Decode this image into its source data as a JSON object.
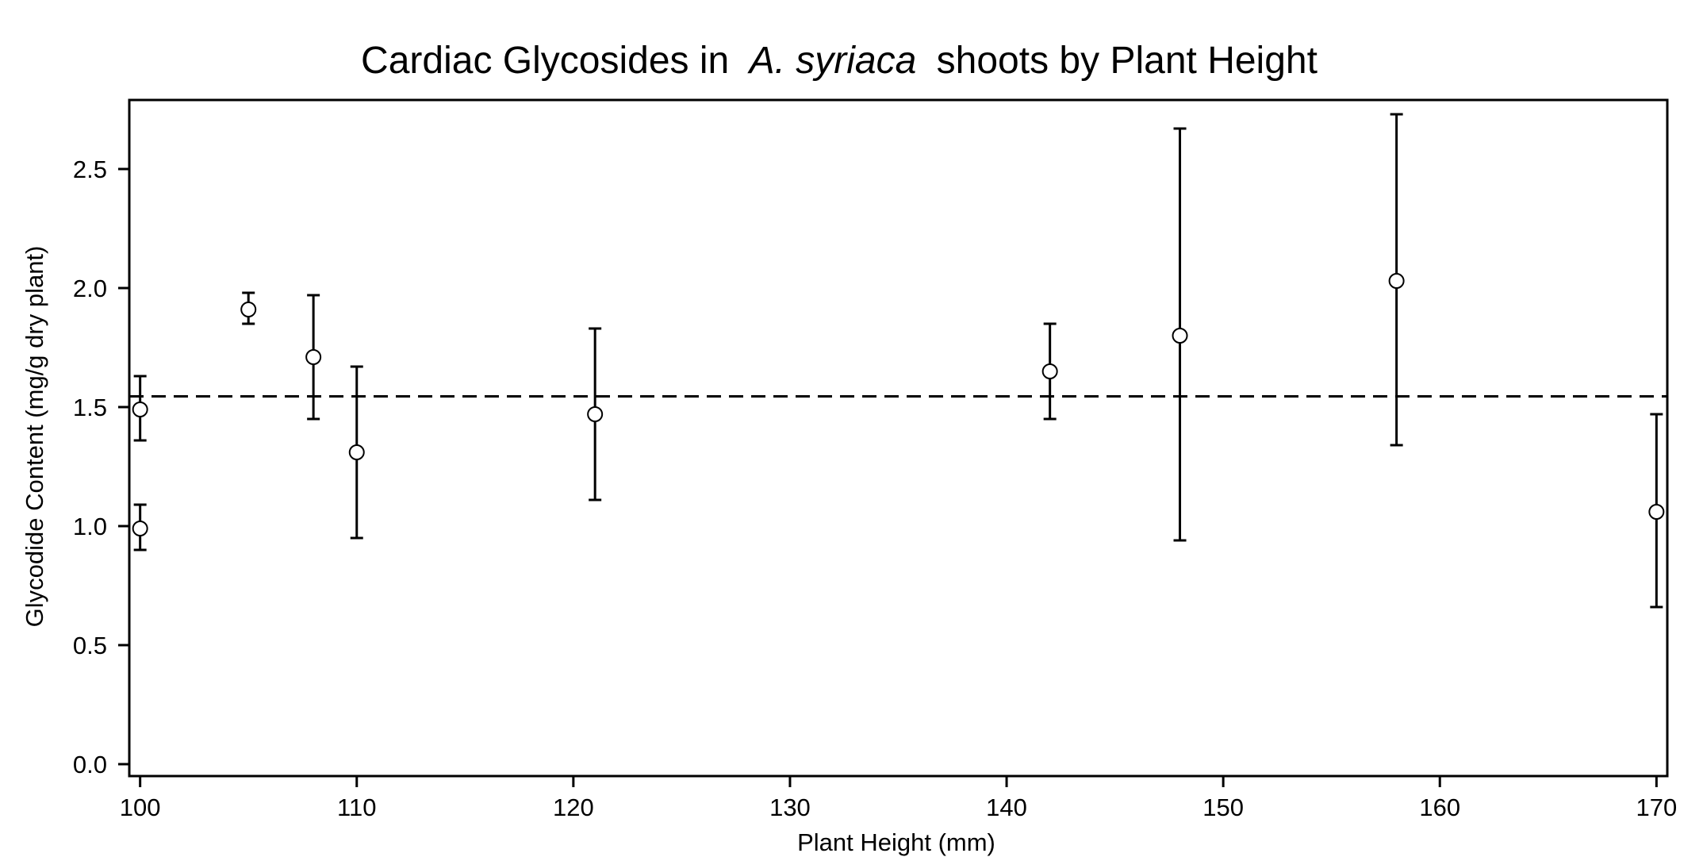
{
  "chart_data": {
    "type": "scatter",
    "title": {
      "prefix": "Cardiac Glycosides in",
      "italic": "A. syriaca",
      "suffix": "shoots by Plant Height"
    },
    "xlabel": "Plant Height (mm)",
    "ylabel": "Glycodide Content (mg/g dry plant)",
    "xlim": [
      99.5,
      170.5
    ],
    "ylim": [
      -0.05,
      2.79
    ],
    "x_ticks": [
      100,
      110,
      120,
      130,
      140,
      150,
      160,
      170
    ],
    "x_tick_labels": [
      "100",
      "110",
      "120",
      "130",
      "140",
      "150",
      "160",
      "170"
    ],
    "y_ticks": [
      0.0,
      0.5,
      1.0,
      1.5,
      2.0,
      2.5
    ],
    "y_tick_labels": [
      "0.0",
      "0.5",
      "1.0",
      "1.5",
      "2.0",
      "2.5"
    ],
    "grid": false,
    "marker": "open-circle",
    "mean_line": {
      "y": 1.545,
      "style": "dashed"
    },
    "points": [
      {
        "x": 100,
        "y": 1.49,
        "y_low": 1.36,
        "y_high": 1.63
      },
      {
        "x": 100,
        "y": 0.99,
        "y_low": 0.9,
        "y_high": 1.09
      },
      {
        "x": 105,
        "y": 1.91,
        "y_low": 1.85,
        "y_high": 1.98
      },
      {
        "x": 108,
        "y": 1.71,
        "y_low": 1.45,
        "y_high": 1.97
      },
      {
        "x": 110,
        "y": 1.31,
        "y_low": 0.95,
        "y_high": 1.67
      },
      {
        "x": 121,
        "y": 1.47,
        "y_low": 1.11,
        "y_high": 1.83
      },
      {
        "x": 142,
        "y": 1.65,
        "y_low": 1.45,
        "y_high": 1.85
      },
      {
        "x": 148,
        "y": 1.8,
        "y_low": 0.94,
        "y_high": 2.67
      },
      {
        "x": 158,
        "y": 2.03,
        "y_low": 1.34,
        "y_high": 2.73
      },
      {
        "x": 170,
        "y": 1.06,
        "y_low": 0.66,
        "y_high": 1.47
      }
    ],
    "colors": {
      "ink": "#000000",
      "background": "#ffffff"
    }
  }
}
